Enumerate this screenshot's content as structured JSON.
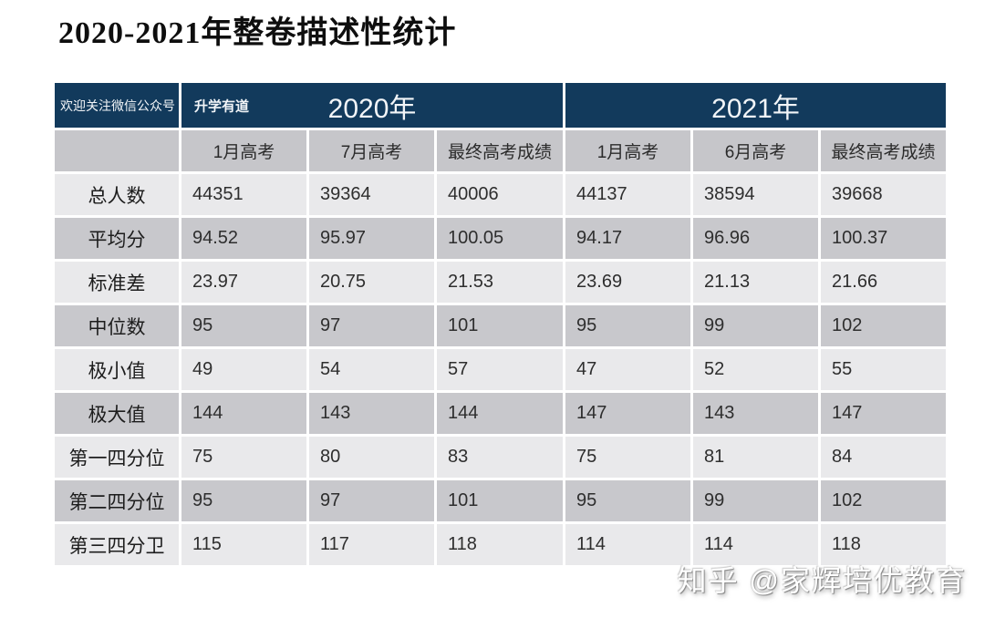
{
  "title": "2020-2021年整卷描述性统计",
  "table": {
    "corner_label": "欢迎关注微信公众号",
    "wechat_label": "升学有道",
    "year_groups": [
      {
        "label": "2020年",
        "sub": [
          "1月高考",
          "7月高考",
          "最终高考成绩"
        ]
      },
      {
        "label": "2021年",
        "sub": [
          "1月高考",
          "6月高考",
          "最终高考成绩"
        ]
      }
    ],
    "rows": [
      {
        "label": "总人数",
        "values": [
          "44351",
          "39364",
          "40006",
          "44137",
          "38594",
          "39668"
        ]
      },
      {
        "label": "平均分",
        "values": [
          "94.52",
          "95.97",
          "100.05",
          "94.17",
          "96.96",
          "100.37"
        ]
      },
      {
        "label": "标准差",
        "values": [
          "23.97",
          "20.75",
          "21.53",
          "23.69",
          "21.13",
          "21.66"
        ]
      },
      {
        "label": "中位数",
        "values": [
          "95",
          "97",
          "101",
          "95",
          "99",
          "102"
        ]
      },
      {
        "label": "极小值",
        "values": [
          "49",
          "54",
          "57",
          "47",
          "52",
          "55"
        ]
      },
      {
        "label": "极大值",
        "values": [
          "144",
          "143",
          "144",
          "147",
          "143",
          "147"
        ]
      },
      {
        "label": "第一四分位",
        "values": [
          "75",
          "80",
          "83",
          "75",
          "81",
          "84"
        ]
      },
      {
        "label": "第二四分位",
        "values": [
          "95",
          "97",
          "101",
          "95",
          "99",
          "102"
        ]
      },
      {
        "label": "第三四分卫",
        "values": [
          "115",
          "117",
          "118",
          "114",
          "114",
          "118"
        ]
      }
    ]
  },
  "watermark": "知乎 @家辉培优教育",
  "colors": {
    "header_bg": "#123a5c",
    "header_text": "#f2f5f8",
    "subheader_bg": "#c6c6ca",
    "row_light": "#e9e9eb",
    "row_dark": "#c8c8cc",
    "cell_border": "#ffffff",
    "text": "#2e2e2e"
  },
  "chart_data": {
    "type": "table",
    "title": "2020-2021年整卷描述性统计",
    "column_groups": [
      {
        "group": "2020年",
        "columns": [
          "1月高考",
          "7月高考",
          "最终高考成绩"
        ]
      },
      {
        "group": "2021年",
        "columns": [
          "1月高考",
          "6月高考",
          "最终高考成绩"
        ]
      }
    ],
    "row_header": [
      "总人数",
      "平均分",
      "标准差",
      "中位数",
      "极小值",
      "极大值",
      "第一四分位",
      "第二四分位",
      "第三四分卫"
    ],
    "values": [
      [
        44351,
        39364,
        40006,
        44137,
        38594,
        39668
      ],
      [
        94.52,
        95.97,
        100.05,
        94.17,
        96.96,
        100.37
      ],
      [
        23.97,
        20.75,
        21.53,
        23.69,
        21.13,
        21.66
      ],
      [
        95,
        97,
        101,
        95,
        99,
        102
      ],
      [
        49,
        54,
        57,
        47,
        52,
        55
      ],
      [
        144,
        143,
        144,
        147,
        143,
        147
      ],
      [
        75,
        80,
        83,
        75,
        81,
        84
      ],
      [
        95,
        97,
        101,
        95,
        99,
        102
      ],
      [
        115,
        117,
        118,
        114,
        114,
        118
      ]
    ],
    "annotations": [
      "欢迎关注微信公众号",
      "升学有道",
      "知乎 @家辉培优教育"
    ]
  }
}
